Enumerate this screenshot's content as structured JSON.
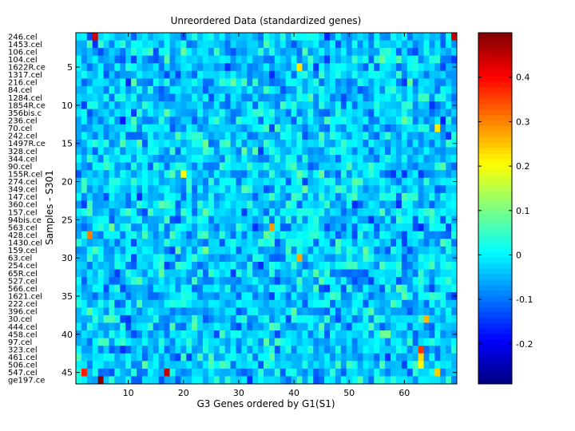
{
  "chart_data": {
    "type": "heatmap",
    "title": "Unreordered Data (standardized genes)",
    "xlabel": "G3 Genes ordered by G1(S1)",
    "ylabel": "Samples - S301",
    "n_cols": 69,
    "n_rows": 46,
    "xticks": [
      10,
      20,
      30,
      40,
      50,
      60
    ],
    "yticks": [
      5,
      10,
      15,
      20,
      25,
      30,
      35,
      40,
      45
    ],
    "row_labels": [
      "246.cel",
      "1453.cel",
      "106.cel",
      "104.cel",
      "1622R.ce",
      "1317.cel",
      "216.cel",
      "84.cel",
      "1284.cel",
      "1854R.ce",
      "356bis.c",
      "236.cel",
      "70.cel",
      "242.cel",
      "1497R.ce",
      "328.cel",
      "344.cel",
      "90.cel",
      "155R.cel",
      "274.cel",
      "349.cel",
      "147.cel",
      "360.cel",
      "157.cel",
      "94bis.ce",
      "563.cel",
      "428.cel",
      "1430.cel",
      "159.cel",
      "63.cel",
      "254.cel",
      "65R.cel",
      "527.cel",
      "566.cel",
      "1621.cel",
      "222.cel",
      "396.cel",
      "30.cel",
      "444.cel",
      "458.cel",
      "97.cel",
      "323.cel",
      "461.cel",
      "506.cel",
      "547.cel",
      "ge197.ce"
    ],
    "colorbar": {
      "min": -0.29,
      "max": 0.5,
      "ticks": [
        "0.4",
        "0.3",
        "0.2",
        "0.1",
        "0",
        "-0.1",
        "-0.2"
      ],
      "tick_values": [
        0.4,
        0.3,
        0.2,
        0.1,
        0,
        -0.1,
        -0.2
      ],
      "colormap": "jet"
    },
    "highlights": [
      {
        "row": 1,
        "col": 4,
        "value": 0.44
      },
      {
        "row": 1,
        "col": 69,
        "value": 0.45
      },
      {
        "row": 5,
        "col": 41,
        "value": 0.22
      },
      {
        "row": 13,
        "col": 66,
        "value": 0.22
      },
      {
        "row": 19,
        "col": 20,
        "value": 0.2
      },
      {
        "row": 27,
        "col": 3,
        "value": 0.3
      },
      {
        "row": 26,
        "col": 36,
        "value": 0.28
      },
      {
        "row": 30,
        "col": 41,
        "value": 0.27
      },
      {
        "row": 38,
        "col": 64,
        "value": 0.26
      },
      {
        "row": 42,
        "col": 63,
        "value": 0.36
      },
      {
        "row": 43,
        "col": 63,
        "value": 0.23
      },
      {
        "row": 44,
        "col": 63,
        "value": 0.2
      },
      {
        "row": 45,
        "col": 2,
        "value": 0.38
      },
      {
        "row": 45,
        "col": 17,
        "value": 0.45
      },
      {
        "row": 45,
        "col": 66,
        "value": 0.24
      },
      {
        "row": 46,
        "col": 5,
        "value": 0.5
      }
    ]
  }
}
